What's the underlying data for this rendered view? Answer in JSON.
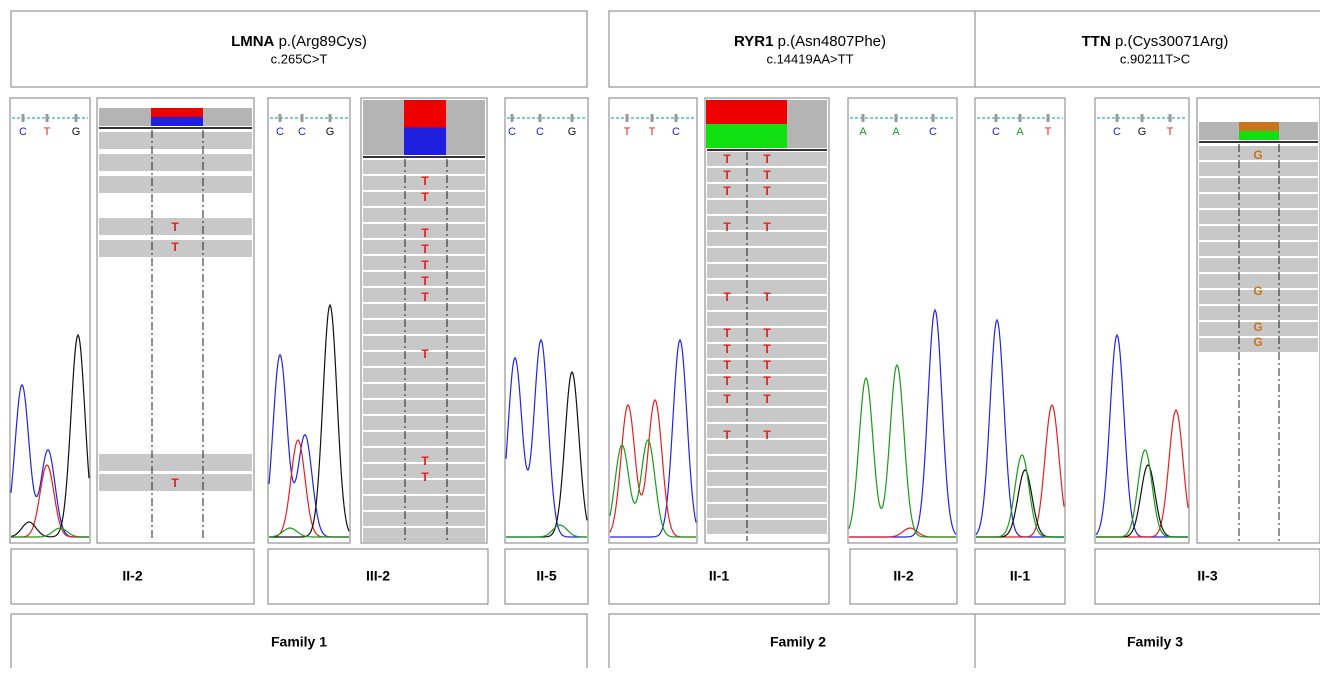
{
  "variants": [
    {
      "gene": "LMNA",
      "protein": "p.(Arg89Cys)",
      "cdna": "c.265C>T",
      "family": "Family 1"
    },
    {
      "gene": "RYR1",
      "protein": "p.(Asn4807Phe)",
      "cdna": "c.14419AA>TT",
      "family": "Family 2"
    },
    {
      "gene": "TTN",
      "protein": "p.(Cys30071Arg)",
      "cdna": "c.90211T>C",
      "family": "Family 3"
    }
  ],
  "samples": [
    {
      "label": "II-2",
      "bases": [
        "C",
        "T",
        "G"
      ],
      "reads": [
        "T",
        "T",
        "T"
      ]
    },
    {
      "label": "III-2",
      "bases": [
        "C",
        "C",
        "G"
      ],
      "reads": [
        "T",
        "T",
        "T",
        "T",
        "T",
        "T",
        "T",
        "T",
        "T",
        "T"
      ]
    },
    {
      "label": "II-5",
      "bases": [
        "C",
        "C",
        "G"
      ]
    },
    {
      "label": "II-1",
      "bases": [
        "T",
        "T",
        "C"
      ],
      "reads": [
        "T",
        "T",
        "T",
        "T",
        "T",
        "T",
        "T",
        "T",
        "T",
        "T",
        "T",
        "T",
        "T",
        "T",
        "T",
        "T",
        "T",
        "T",
        "T",
        "T",
        "T",
        "T"
      ]
    },
    {
      "label": "II-2",
      "bases": [
        "A",
        "A",
        "C"
      ]
    },
    {
      "label": "II-1",
      "bases": [
        "C",
        "A",
        "T"
      ]
    },
    {
      "label": "II-3",
      "bases": [
        "C",
        "G",
        "T"
      ],
      "reads": [
        "G",
        "G",
        "G",
        "G"
      ]
    }
  ]
}
